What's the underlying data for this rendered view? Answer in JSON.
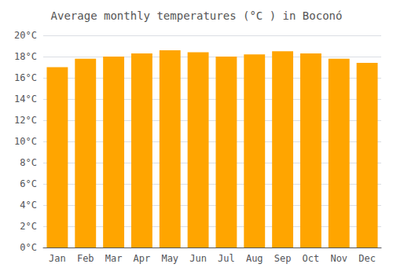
{
  "chart_data": {
    "type": "bar",
    "title": "Average monthly temperatures (°C ) in Boconó",
    "categories": [
      "Jan",
      "Feb",
      "Mar",
      "Apr",
      "May",
      "Jun",
      "Jul",
      "Aug",
      "Sep",
      "Oct",
      "Nov",
      "Dec"
    ],
    "values": [
      17.0,
      17.8,
      18.0,
      18.3,
      18.6,
      18.4,
      18.0,
      18.2,
      18.5,
      18.3,
      17.8,
      17.4
    ],
    "color": "#FFA500",
    "ylim": [
      0,
      20
    ],
    "yticks": [
      {
        "value": 0,
        "label": "0°C"
      },
      {
        "value": 2,
        "label": "2°C"
      },
      {
        "value": 4,
        "label": "4°C"
      },
      {
        "value": 6,
        "label": "6°C"
      },
      {
        "value": 8,
        "label": "8°C"
      },
      {
        "value": 10,
        "label": "10°C"
      },
      {
        "value": 12,
        "label": "12°C"
      },
      {
        "value": 14,
        "label": "14°C"
      },
      {
        "value": 16,
        "label": "16°C"
      },
      {
        "value": 18,
        "label": "18°C"
      },
      {
        "value": 20,
        "label": "20°C"
      }
    ],
    "grid": true
  }
}
